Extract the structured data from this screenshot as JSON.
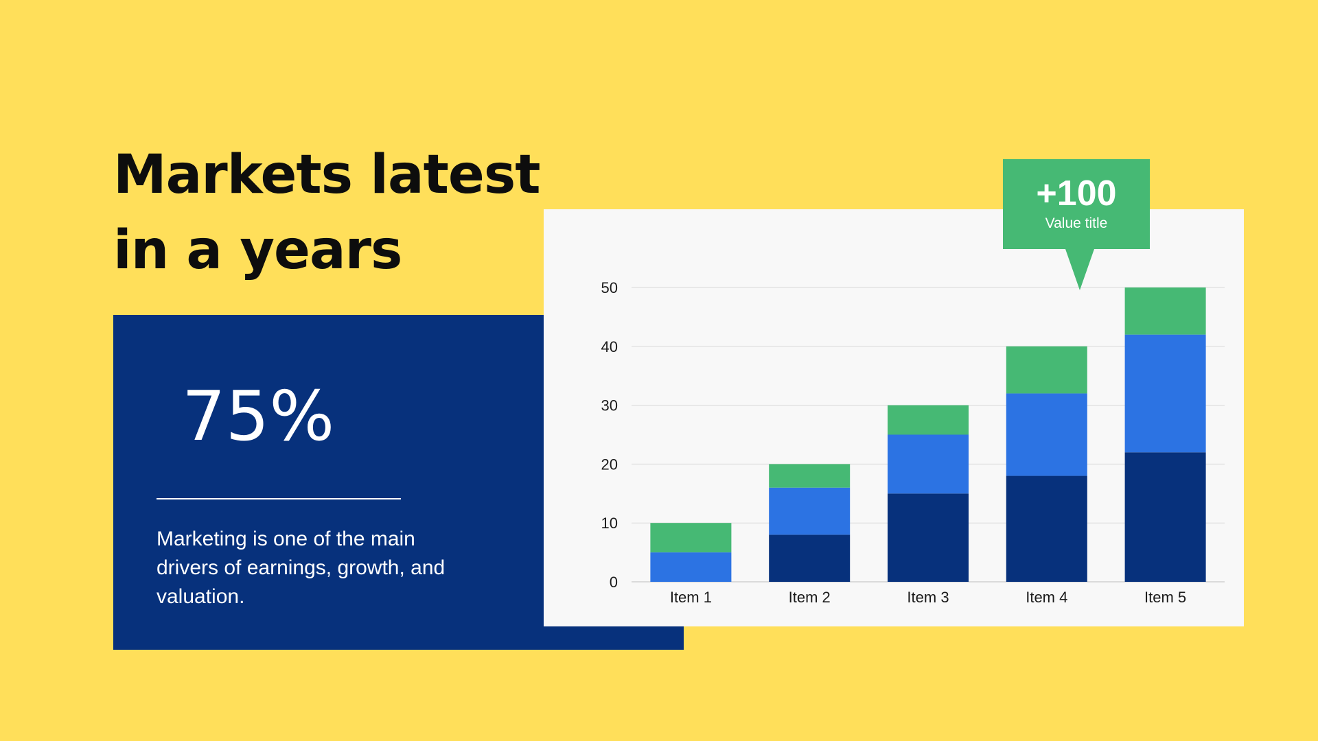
{
  "heading": {
    "line1": "Markets latest",
    "line2": "in a years"
  },
  "stat_card": {
    "value": "75%",
    "description": "Marketing is one of the main drivers of earnings, growth, and valuation."
  },
  "callout": {
    "value": "+100",
    "label": "Value title"
  },
  "colors": {
    "background": "#FFDF5A",
    "card": "#07317C",
    "series_dark": "#07317C",
    "series_blue": "#2C73E3",
    "series_green": "#46B974"
  },
  "chart_data": {
    "type": "bar",
    "stacked": true,
    "categories": [
      "Item 1",
      "Item 2",
      "Item 3",
      "Item 4",
      "Item 5"
    ],
    "series": [
      {
        "values": [
          0,
          8,
          15,
          18,
          22
        ],
        "color": "#07317C"
      },
      {
        "values": [
          5,
          8,
          10,
          14,
          20
        ],
        "color": "#2C73E3"
      },
      {
        "values": [
          5,
          4,
          5,
          8,
          8
        ],
        "color": "#46B974"
      }
    ],
    "ylim": [
      0,
      50
    ],
    "yticks": [
      0,
      10,
      20,
      30,
      40,
      50
    ],
    "grid": true,
    "legend": "none"
  }
}
